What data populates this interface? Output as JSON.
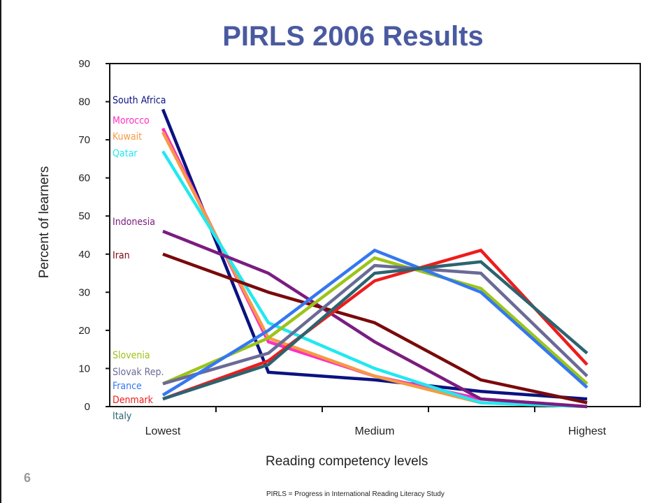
{
  "slide": {
    "title": "PIRLS 2006 Results",
    "page_number": "6",
    "footnote": "PIRLS = Progress in International Reading Literacy Study"
  },
  "chart_data": {
    "type": "line",
    "title": "PIRLS 2006 Results",
    "xlabel": "Reading competency levels",
    "ylabel": "Percent of learners",
    "ylim": [
      0,
      90
    ],
    "yticks": [
      "0",
      "10",
      "20",
      "30",
      "40",
      "50",
      "60",
      "70",
      "80",
      "90"
    ],
    "x_tick_labels": [
      "Lowest",
      "",
      "Medium",
      "",
      "Highest"
    ],
    "grid": false,
    "series": [
      {
        "name": "South Africa",
        "color": "#0b1280",
        "values": [
          78,
          9,
          7,
          4,
          2
        ]
      },
      {
        "name": "Morocco",
        "color": "#ff2fc0",
        "values": [
          73,
          17,
          8,
          2,
          0
        ]
      },
      {
        "name": "Kuwait",
        "color": "#f59a45",
        "values": [
          72,
          18,
          8,
          1,
          0
        ]
      },
      {
        "name": "Qatar",
        "color": "#22e8f0",
        "values": [
          67,
          22,
          10,
          1,
          0
        ]
      },
      {
        "name": "Indonesia",
        "color": "#7b1c80",
        "values": [
          46,
          35,
          17,
          2,
          0
        ]
      },
      {
        "name": "Iran",
        "color": "#7a0a0a",
        "values": [
          40,
          30,
          22,
          7,
          1
        ]
      },
      {
        "name": "Slovenia",
        "color": "#9cc418",
        "values": [
          6,
          18,
          39,
          31,
          6
        ]
      },
      {
        "name": "Slovak Rep.",
        "color": "#6a6a96",
        "values": [
          6,
          14,
          37,
          35,
          8
        ]
      },
      {
        "name": "France",
        "color": "#3478f0",
        "values": [
          3,
          20,
          41,
          30,
          5
        ]
      },
      {
        "name": "Denmark",
        "color": "#ee1c1c",
        "values": [
          2,
          12,
          33,
          41,
          11
        ]
      },
      {
        "name": "Italy",
        "color": "#2c6470",
        "values": [
          2,
          11,
          35,
          38,
          14
        ]
      }
    ]
  }
}
